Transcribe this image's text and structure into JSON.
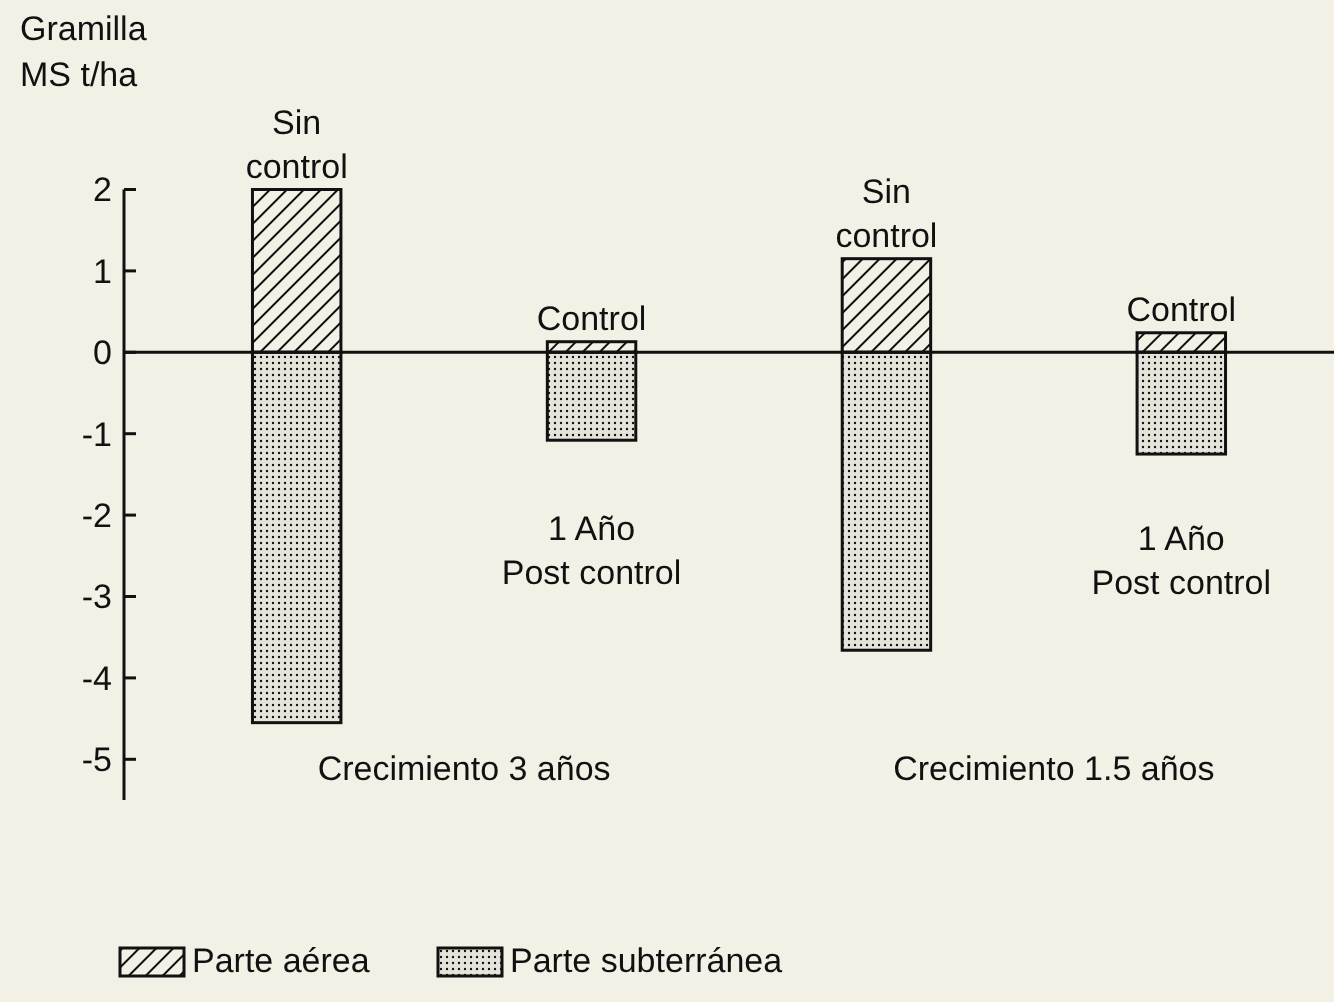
{
  "chart_data": {
    "type": "bar",
    "stacked": true,
    "ylabel": "Gramilla\nMS t/ha",
    "categories": [
      "Sin control",
      "Control",
      "Sin control",
      "Control"
    ],
    "series": [
      {
        "name": "Parte aérea",
        "color": "#111111",
        "values": [
          2.0,
          0.13,
          1.15,
          0.24
        ]
      },
      {
        "name": "Parte subterránea",
        "color": "#111111",
        "values": [
          -4.55,
          -1.08,
          -3.66,
          -1.25
        ]
      }
    ],
    "ylim": [
      -5.5,
      2
    ],
    "yticks": [
      2,
      1,
      0,
      -1,
      -2,
      -3,
      -4,
      -5
    ],
    "legend": "bottom",
    "annotations": [
      "1 Año\nPost control",
      "1 Año\nPost control",
      "Crecimiento 3 años",
      "Crecimiento 1.5 años"
    ]
  }
}
